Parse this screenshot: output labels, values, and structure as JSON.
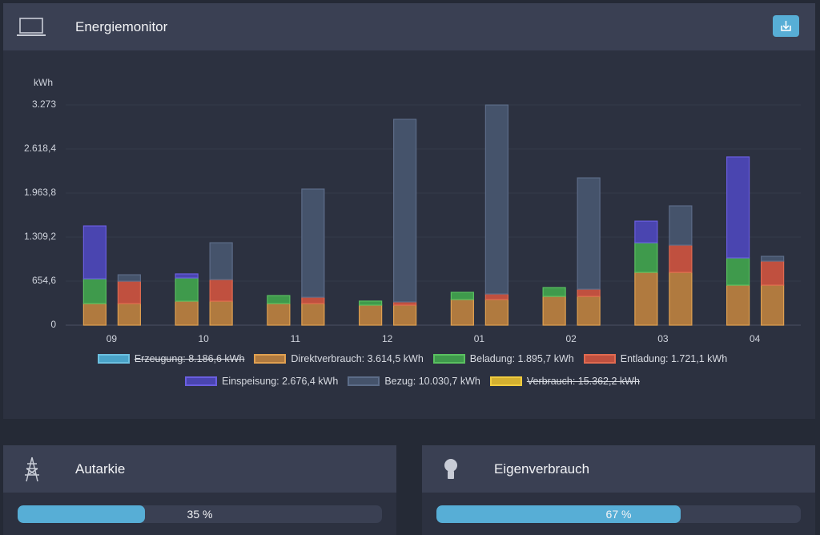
{
  "header": {
    "title": "Energiemonitor"
  },
  "chart_data": {
    "type": "bar",
    "y_label": "kWh",
    "categories": [
      "09",
      "10",
      "11",
      "12",
      "01",
      "02",
      "03",
      "04"
    ],
    "ylim": [
      0,
      3273
    ],
    "yticks": [
      0,
      {
        "value": 654.6,
        "label": "654,6"
      },
      {
        "value": 1309.2,
        "label": "1.309,2"
      },
      {
        "value": 1963.8,
        "label": "1.963,8"
      },
      {
        "value": 2618.4,
        "label": "2.618,4"
      },
      {
        "value": 3273,
        "label": "3.273"
      }
    ],
    "grid": true,
    "series": [
      {
        "name": "Erzeugung: 8.186,6 kWh",
        "color": "#4aa3c8",
        "border": "#6cc0e0",
        "hidden": true
      },
      {
        "name": "Direktverbrauch: 3.614,5 kWh",
        "color": "#b07a3f",
        "border": "#e0a050",
        "stacks": [
          0,
          1
        ],
        "values": [
          321,
          357,
          321,
          298,
          381,
          428,
          785,
          595
        ]
      },
      {
        "name": "Beladung: 1.895,7 kWh",
        "color": "#3f9a4c",
        "border": "#5ac060",
        "stacks": [
          0
        ],
        "values": [
          369,
          345,
          119,
          60,
          107,
          131,
          440,
          405
        ]
      },
      {
        "name": "Entladung: 1.721,1 kWh",
        "color": "#c0503f",
        "border": "#e06a50",
        "stacks": [
          1
        ],
        "values": [
          333,
          321,
          95,
          48,
          83,
          107,
          405,
          357
        ]
      },
      {
        "name": "Einspeisung: 2.676,4 kWh",
        "color": "#4a45b0",
        "border": "#6a5ee0",
        "stacks": [
          0
        ],
        "values": [
          785,
          60,
          0,
          0,
          0,
          0,
          321,
          1500
        ]
      },
      {
        "name": "Bezug: 10.030,7 kWh",
        "color": "#45536b",
        "border": "#5c6c88",
        "stacks": [
          1
        ],
        "values": [
          95,
          547,
          1607,
          2713,
          2808,
          1654,
          583,
          71
        ]
      },
      {
        "name": "Verbrauch: 15.362,2 kWh",
        "color": "#d4b030",
        "border": "#f0cc40",
        "hidden": true
      }
    ]
  },
  "cards": [
    {
      "title": "Autarkie",
      "value": 35,
      "value_label": "35 %",
      "xlim": [
        0,
        100
      ]
    },
    {
      "title": "Eigenverbrauch",
      "value": 67,
      "value_label": "67 %",
      "xlim": [
        0,
        100
      ]
    }
  ]
}
